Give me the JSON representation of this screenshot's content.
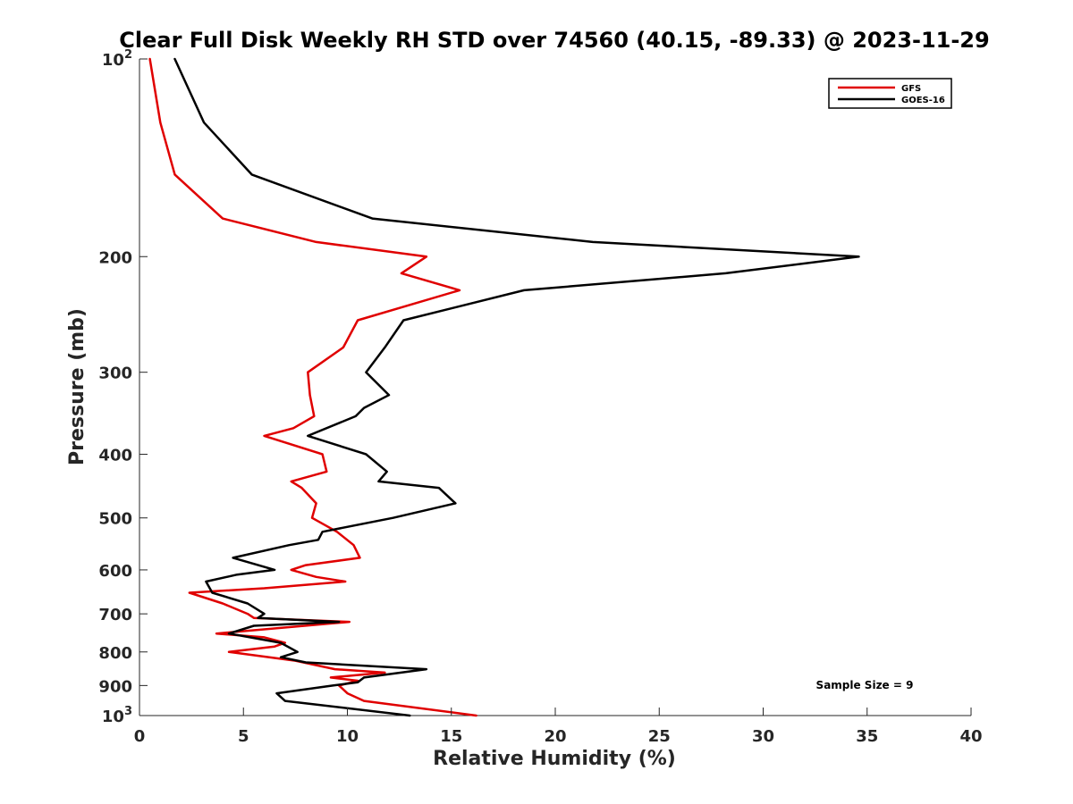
{
  "chart_data": {
    "type": "line",
    "title": "Clear Full Disk Weekly RH STD over 74560 (40.15, -89.33) @ 2023-11-29",
    "xlabel": "Relative Humidity (%)",
    "ylabel": "Pressure (mb)",
    "xlim": [
      0,
      40
    ],
    "ylim": [
      100,
      1000
    ],
    "y_scale": "log",
    "y_reversed": true,
    "x_ticks": [
      0,
      5,
      10,
      15,
      20,
      25,
      30,
      35,
      40
    ],
    "x_tick_labels": [
      "0",
      "5",
      "10",
      "15",
      "20",
      "25",
      "30",
      "35",
      "40"
    ],
    "y_ticks": [
      {
        "value": 100,
        "base": "10",
        "exp": "2"
      },
      {
        "value": 200,
        "label": "200"
      },
      {
        "value": 300,
        "label": "300"
      },
      {
        "value": 400,
        "label": "400"
      },
      {
        "value": 500,
        "label": "500"
      },
      {
        "value": 600,
        "label": "600"
      },
      {
        "value": 700,
        "label": "700"
      },
      {
        "value": 800,
        "label": "800"
      },
      {
        "value": 900,
        "label": "900"
      },
      {
        "value": 1000,
        "base": "10",
        "exp": "3"
      }
    ],
    "legend_position": "top-right",
    "annotation": "Sample Size = 9",
    "series": [
      {
        "name": "GFS",
        "color": "#e00000",
        "points": [
          [
            0.5,
            100
          ],
          [
            1.0,
            125
          ],
          [
            1.7,
            150
          ],
          [
            4.0,
            175
          ],
          [
            8.5,
            190
          ],
          [
            13.8,
            200
          ],
          [
            12.6,
            212
          ],
          [
            15.4,
            225
          ],
          [
            10.5,
            250
          ],
          [
            9.8,
            275
          ],
          [
            8.1,
            300
          ],
          [
            8.2,
            325
          ],
          [
            8.4,
            350
          ],
          [
            7.4,
            365
          ],
          [
            6.0,
            375
          ],
          [
            8.8,
            400
          ],
          [
            9.0,
            425
          ],
          [
            7.3,
            440
          ],
          [
            7.8,
            450
          ],
          [
            8.5,
            475
          ],
          [
            8.3,
            500
          ],
          [
            9.5,
            525
          ],
          [
            10.3,
            550
          ],
          [
            10.6,
            575
          ],
          [
            8.0,
            590
          ],
          [
            7.3,
            600
          ],
          [
            8.5,
            615
          ],
          [
            9.9,
            625
          ],
          [
            6.0,
            640
          ],
          [
            2.4,
            650
          ],
          [
            4.0,
            675
          ],
          [
            5.2,
            700
          ],
          [
            5.5,
            710
          ],
          [
            10.1,
            720
          ],
          [
            3.7,
            750
          ],
          [
            6.0,
            760
          ],
          [
            7.0,
            775
          ],
          [
            6.5,
            785
          ],
          [
            4.3,
            800
          ],
          [
            7.5,
            825
          ],
          [
            9.4,
            850
          ],
          [
            11.8,
            860
          ],
          [
            9.2,
            875
          ],
          [
            10.5,
            885
          ],
          [
            9.6,
            900
          ],
          [
            10.0,
            925
          ],
          [
            10.8,
            950
          ],
          [
            16.2,
            1000
          ]
        ]
      },
      {
        "name": "GOES-16",
        "color": "#000000",
        "points": [
          [
            1.7,
            100
          ],
          [
            3.1,
            125
          ],
          [
            5.4,
            150
          ],
          [
            11.2,
            175
          ],
          [
            21.8,
            190
          ],
          [
            34.6,
            200
          ],
          [
            28.2,
            212
          ],
          [
            18.5,
            225
          ],
          [
            12.7,
            250
          ],
          [
            11.8,
            275
          ],
          [
            10.9,
            300
          ],
          [
            12.0,
            325
          ],
          [
            10.8,
            340
          ],
          [
            10.4,
            350
          ],
          [
            8.1,
            375
          ],
          [
            10.9,
            400
          ],
          [
            11.9,
            425
          ],
          [
            11.5,
            440
          ],
          [
            14.4,
            450
          ],
          [
            15.2,
            475
          ],
          [
            12.2,
            500
          ],
          [
            8.8,
            525
          ],
          [
            8.6,
            540
          ],
          [
            7.2,
            550
          ],
          [
            4.5,
            575
          ],
          [
            6.5,
            600
          ],
          [
            4.7,
            610
          ],
          [
            3.2,
            625
          ],
          [
            3.5,
            650
          ],
          [
            5.2,
            675
          ],
          [
            6.0,
            700
          ],
          [
            5.7,
            710
          ],
          [
            9.6,
            720
          ],
          [
            5.5,
            730
          ],
          [
            4.3,
            750
          ],
          [
            6.8,
            775
          ],
          [
            7.6,
            800
          ],
          [
            6.8,
            815
          ],
          [
            8.0,
            830
          ],
          [
            13.8,
            850
          ],
          [
            10.8,
            875
          ],
          [
            10.5,
            890
          ],
          [
            9.3,
            900
          ],
          [
            6.6,
            925
          ],
          [
            7.0,
            950
          ],
          [
            13.0,
            1000
          ]
        ]
      }
    ]
  }
}
